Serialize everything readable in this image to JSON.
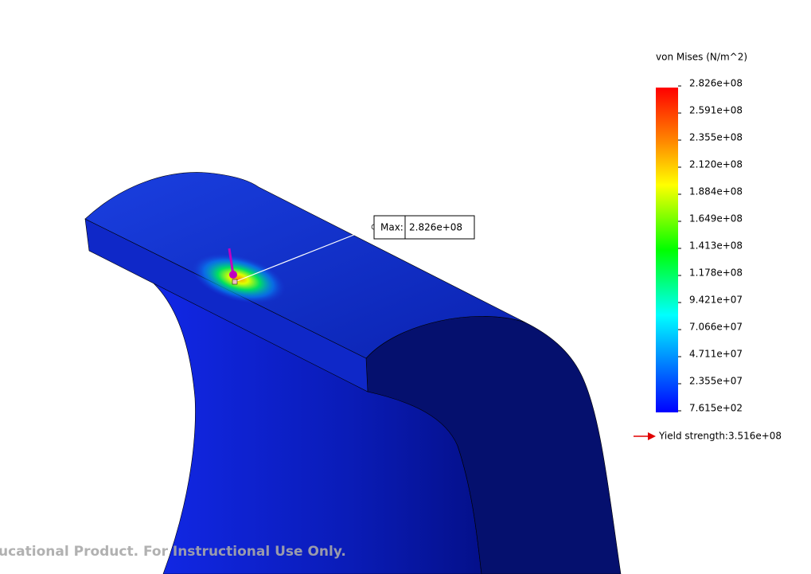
{
  "legend": {
    "title": "von Mises (N/m^2)",
    "ticks": [
      "2.826e+08",
      "2.591e+08",
      "2.355e+08",
      "2.120e+08",
      "1.884e+08",
      "1.649e+08",
      "1.413e+08",
      "1.178e+08",
      "9.421e+07",
      "7.066e+07",
      "4.711e+07",
      "2.355e+07",
      "7.615e+02"
    ]
  },
  "probe": {
    "label": "Max:",
    "value": "2.826e+08"
  },
  "yield": {
    "label": "Yield strength:",
    "value": "3.516e+08"
  },
  "watermark": "ucational Product. For Instructional Use Only."
}
